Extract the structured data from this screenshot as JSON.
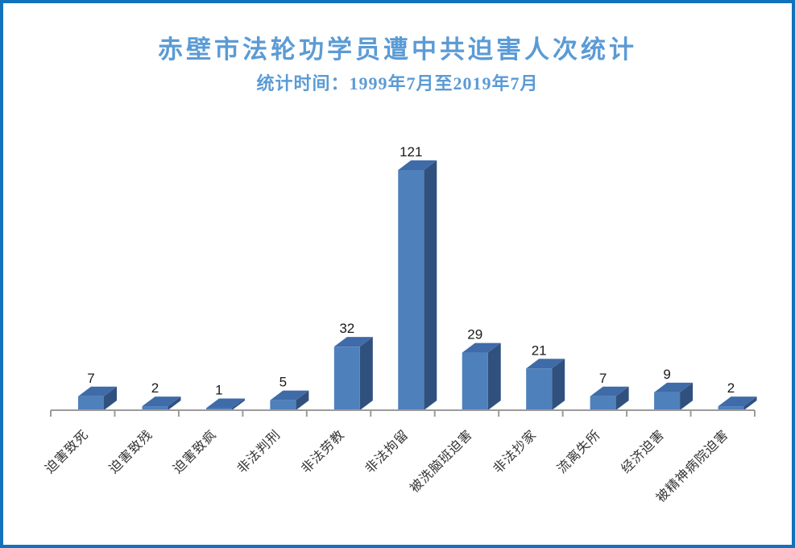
{
  "page": {
    "border_color": "#1273bc",
    "background_color": "#ffffff"
  },
  "header": {
    "title": "赤壁市法轮功学员遭中共迫害人次统计",
    "subtitle": "统计时间：1999年7月至2019年7月",
    "title_color": "#5b9bd5"
  },
  "chart_data": {
    "type": "bar",
    "style": "3d",
    "title": "赤壁市法轮功学员遭中共迫害人次统计",
    "subtitle": "统计时间：1999年7月至2019年7月",
    "categories": [
      "迫害致死",
      "迫害致残",
      "迫害致疯",
      "非法判刑",
      "非法劳教",
      "非法拘留",
      "被洗脑班迫害",
      "非法抄家",
      "流离失所",
      "经济迫害",
      "被精神病院迫害"
    ],
    "values": [
      7,
      2,
      1,
      5,
      32,
      121,
      29,
      21,
      7,
      9,
      2
    ],
    "xlabel": "",
    "ylabel": "",
    "ylim": [
      0,
      125
    ],
    "grid": false,
    "legend": false,
    "data_labels": true,
    "colors": {
      "bar_front": "#4e80bc",
      "bar_top": "#3f6ca8",
      "bar_side": "#30517e",
      "axis": "#9b9b9b",
      "value_label": "#1a1a1a",
      "category_label": "#333333"
    }
  }
}
